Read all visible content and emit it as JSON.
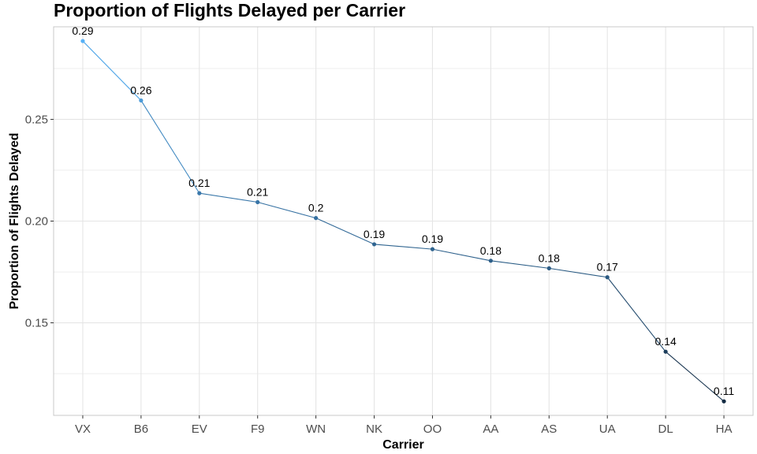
{
  "chart_data": {
    "type": "line",
    "title": "Proportion of Flights Delayed per Carrier",
    "xlabel": "Carrier",
    "ylabel": "Proportion of Flights Delayed",
    "categories": [
      "VX",
      "B6",
      "EV",
      "F9",
      "WN",
      "NK",
      "OO",
      "AA",
      "AS",
      "UA",
      "DL",
      "HA"
    ],
    "values": [
      0.2885,
      0.2593,
      0.2137,
      0.2093,
      0.2015,
      0.1886,
      0.1862,
      0.1805,
      0.1768,
      0.1724,
      0.1358,
      0.1114
    ],
    "data_labels": [
      "0.29",
      "0.26",
      "0.21",
      "0.21",
      "0.2",
      "0.19",
      "0.19",
      "0.18",
      "0.18",
      "0.17",
      "0.14",
      "0.11"
    ],
    "ylim": [
      0.1045,
      0.2955
    ],
    "y_ticks": [
      0.15,
      0.2,
      0.25
    ],
    "y_tick_labels": [
      "0.15",
      "0.20",
      "0.25"
    ],
    "y_minor_ticks": [
      0.125,
      0.175,
      0.225,
      0.275
    ],
    "grid": true,
    "colors": {
      "gradient_start": "#56B1F7",
      "gradient_end": "#132B43",
      "grid": "#e5e5e5",
      "panel_border": "#c8c8c8"
    }
  }
}
